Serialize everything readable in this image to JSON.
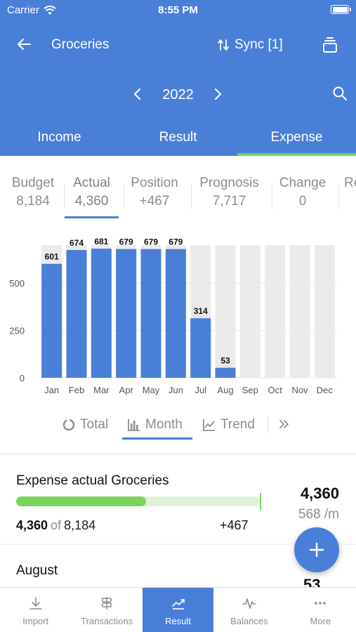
{
  "status": {
    "carrier": "Carrier",
    "time": "8:55 PM"
  },
  "nav": {
    "title": "Groceries",
    "sync_label": "Sync [1]"
  },
  "year": "2022",
  "main_tabs": [
    {
      "label": "Income"
    },
    {
      "label": "Result"
    },
    {
      "label": "Expense"
    }
  ],
  "stats": [
    {
      "label": "Budget",
      "value": "8,184"
    },
    {
      "label": "Actual",
      "value": "4,360"
    },
    {
      "label": "Position",
      "value": "+467"
    },
    {
      "label": "Prognosis",
      "value": "7,717"
    },
    {
      "label": "Change",
      "value": "0"
    },
    {
      "label": "Re",
      "value": ""
    }
  ],
  "chart_data": {
    "type": "bar",
    "categories": [
      "Jan",
      "Feb",
      "Mar",
      "Apr",
      "May",
      "Jun",
      "Jul",
      "Aug",
      "Sep",
      "Oct",
      "Nov",
      "Dec"
    ],
    "series": [
      {
        "values": [
          601,
          674,
          681,
          679,
          679,
          679,
          314,
          53,
          null,
          null,
          null,
          null
        ]
      }
    ],
    "data_labels": [
      "601",
      "674",
      "681",
      "679",
      "679",
      "679",
      "314",
      "53",
      "",
      "",
      "",
      ""
    ],
    "yticks": [
      0,
      250,
      500
    ],
    "ylim": [
      0,
      700
    ],
    "background_bars": true,
    "colors": {
      "bar": "#4a7fd8",
      "background": "#ebebeb",
      "grid": "#e6e6e6"
    }
  },
  "view_tabs": [
    {
      "label": "Total",
      "icon": "pie-icon"
    },
    {
      "label": "Month",
      "icon": "bar-chart-icon"
    },
    {
      "label": "Trend",
      "icon": "line-chart-icon"
    }
  ],
  "summary": {
    "title": "Expense actual Groceries",
    "actual": "4,360",
    "of_label": "of",
    "budget": "8,184",
    "difference": "+467",
    "total": "4,360",
    "per_month": "568 /m",
    "progress": 0.533
  },
  "next_card": {
    "title": "August",
    "value": "53"
  },
  "bottom_tabs": [
    {
      "label": "Import",
      "icon": "import-icon"
    },
    {
      "label": "Transactions",
      "icon": "signpost-icon"
    },
    {
      "label": "Result",
      "icon": "trend-icon"
    },
    {
      "label": "Balances",
      "icon": "pulse-icon"
    },
    {
      "label": "More",
      "icon": "more-icon"
    }
  ],
  "colors": {
    "primary": "#4a7fd8",
    "accent_green": "#6fd25a"
  }
}
